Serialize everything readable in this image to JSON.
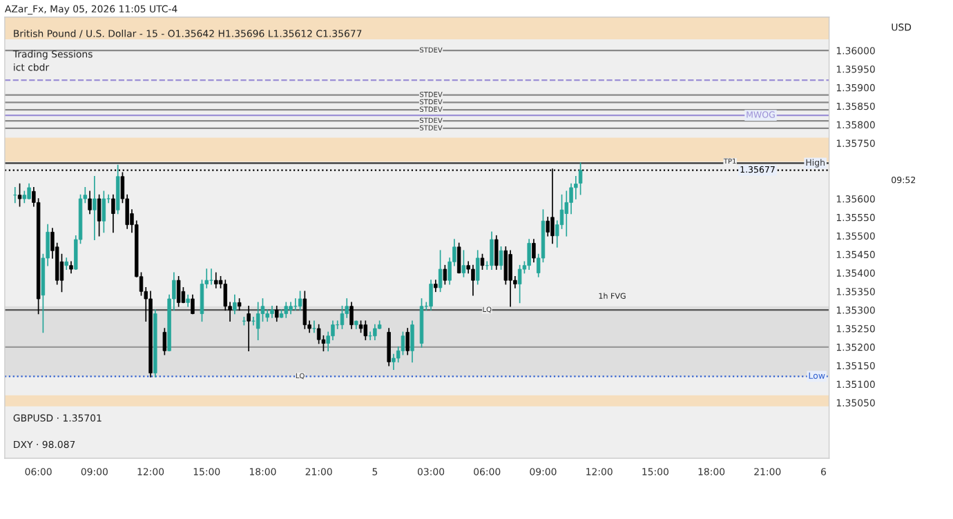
{
  "chart_data": {
    "type": "candlestick",
    "title": "British Pound / U.S. Dollar - 15 - O1.35642 H1.35696 L1.35612 C1.35677",
    "x": [
      "2026-05-04T04:45",
      "2026-05-04T05:00",
      "2026-05-04T05:15",
      "2026-05-04T05:30",
      "2026-05-04T05:45",
      "2026-05-04T06:00",
      "2026-05-04T06:15",
      "2026-05-04T06:30",
      "2026-05-04T06:45",
      "2026-05-04T07:00",
      "2026-05-04T07:15",
      "2026-05-04T07:30",
      "2026-05-04T07:45",
      "2026-05-04T08:00",
      "2026-05-04T08:15",
      "2026-05-04T08:30",
      "2026-05-04T08:45",
      "2026-05-04T09:00",
      "2026-05-04T09:15",
      "2026-05-04T09:30",
      "2026-05-04T09:45",
      "2026-05-04T10:00",
      "2026-05-04T10:15",
      "2026-05-04T10:30",
      "2026-05-04T10:45",
      "2026-05-04T11:00",
      "2026-05-04T11:15",
      "2026-05-04T11:30",
      "2026-05-04T11:45",
      "2026-05-04T12:00",
      "2026-05-04T12:15",
      "2026-05-04T12:45",
      "2026-05-04T13:00",
      "2026-05-04T13:15",
      "2026-05-04T13:30",
      "2026-05-04T13:45",
      "2026-05-04T14:00",
      "2026-05-04T14:15",
      "2026-05-04T14:45",
      "2026-05-04T15:00",
      "2026-05-04T15:15",
      "2026-05-04T15:30",
      "2026-05-04T15:45",
      "2026-05-04T16:00",
      "2026-05-04T16:15",
      "2026-05-04T16:30",
      "2026-05-04T16:45",
      "2026-05-04T17:00",
      "2026-05-04T17:15",
      "2026-05-04T17:30",
      "2026-05-04T17:45",
      "2026-05-04T18:00",
      "2026-05-04T18:15",
      "2026-05-04T18:30",
      "2026-05-04T18:45",
      "2026-05-04T19:00",
      "2026-05-04T19:15",
      "2026-05-04T19:30",
      "2026-05-04T19:45",
      "2026-05-04T20:00",
      "2026-05-04T20:15",
      "2026-05-04T20:30",
      "2026-05-04T20:45",
      "2026-05-04T21:00",
      "2026-05-04T21:15",
      "2026-05-04T21:30",
      "2026-05-04T21:45",
      "2026-05-04T22:00",
      "2026-05-04T22:15",
      "2026-05-04T22:30",
      "2026-05-04T22:45",
      "2026-05-04T23:00",
      "2026-05-04T23:15",
      "2026-05-04T23:30",
      "2026-05-04T23:45",
      "2026-05-05T00:00",
      "2026-05-05T00:15",
      "2026-05-05T00:45",
      "2026-05-05T01:00",
      "2026-05-05T01:15",
      "2026-05-05T01:30",
      "2026-05-05T01:45",
      "2026-05-05T02:00",
      "2026-05-05T02:30",
      "2026-05-05T02:45",
      "2026-05-05T03:00",
      "2026-05-05T03:15",
      "2026-05-05T03:30",
      "2026-05-05T03:45",
      "2026-05-05T04:00",
      "2026-05-05T04:15",
      "2026-05-05T04:30",
      "2026-05-05T04:45",
      "2026-05-05T05:00",
      "2026-05-05T05:15",
      "2026-05-05T05:30",
      "2026-05-05T05:45",
      "2026-05-05T06:00",
      "2026-05-05T06:15",
      "2026-05-05T06:30",
      "2026-05-05T06:45",
      "2026-05-05T07:00",
      "2026-05-05T07:15",
      "2026-05-05T07:30",
      "2026-05-05T07:45",
      "2026-05-05T08:00",
      "2026-05-05T08:15",
      "2026-05-05T08:30",
      "2026-05-05T08:45",
      "2026-05-05T09:00",
      "2026-05-05T09:15",
      "2026-05-05T09:30",
      "2026-05-05T09:45",
      "2026-05-05T10:00",
      "2026-05-05T10:15",
      "2026-05-05T10:30",
      "2026-05-05T10:45",
      "2026-05-05T11:00"
    ],
    "ohlc": [
      [
        1.3561,
        1.3563,
        1.3559,
        1.3561
      ],
      [
        1.3561,
        1.3564,
        1.3558,
        1.356
      ],
      [
        1.356,
        1.3562,
        1.3559,
        1.3561
      ],
      [
        1.356,
        1.3564,
        1.356,
        1.3563
      ],
      [
        1.3562,
        1.3563,
        1.3558,
        1.3559
      ],
      [
        1.3559,
        1.356,
        1.3529,
        1.3533
      ],
      [
        1.3534,
        1.3545,
        1.3524,
        1.3544
      ],
      [
        1.3544,
        1.3553,
        1.3542,
        1.3551
      ],
      [
        1.3551,
        1.3552,
        1.3544,
        1.3546
      ],
      [
        1.3547,
        1.3548,
        1.3537,
        1.3538
      ],
      [
        1.3543,
        1.3545,
        1.3535,
        1.3538
      ],
      [
        1.3542,
        1.3544,
        1.3541,
        1.3543
      ],
      [
        1.3542,
        1.3543,
        1.354,
        1.3541
      ],
      [
        1.3541,
        1.355,
        1.3541,
        1.3549
      ],
      [
        1.3549,
        1.3561,
        1.3548,
        1.356
      ],
      [
        1.356,
        1.3563,
        1.3559,
        1.3561
      ],
      [
        1.356,
        1.3562,
        1.3556,
        1.3557
      ],
      [
        1.3557,
        1.3566,
        1.3549,
        1.356
      ],
      [
        1.356,
        1.3561,
        1.355,
        1.3554
      ],
      [
        1.3554,
        1.3562,
        1.3551,
        1.356
      ],
      [
        1.356,
        1.3561,
        1.3559,
        1.356
      ],
      [
        1.356,
        1.3561,
        1.3551,
        1.3556
      ],
      [
        1.3557,
        1.3569,
        1.3556,
        1.3566
      ],
      [
        1.3566,
        1.3567,
        1.3559,
        1.356
      ],
      [
        1.356,
        1.3561,
        1.3552,
        1.3553
      ],
      [
        1.3556,
        1.3557,
        1.3551,
        1.3553
      ],
      [
        1.3553,
        1.3554,
        1.3539,
        1.3539
      ],
      [
        1.3539,
        1.354,
        1.3534,
        1.3535
      ],
      [
        1.3535,
        1.3536,
        1.3527,
        1.3533
      ],
      [
        1.3533,
        1.3535,
        1.3512,
        1.3513
      ],
      [
        1.3513,
        1.353,
        1.3512,
        1.3529
      ],
      [
        1.3524,
        1.3525,
        1.3518,
        1.3519
      ],
      [
        1.3519,
        1.3534,
        1.3519,
        1.3533
      ],
      [
        1.3533,
        1.354,
        1.353,
        1.3538
      ],
      [
        1.3538,
        1.3539,
        1.3531,
        1.3532
      ],
      [
        1.3535,
        1.3536,
        1.3532,
        1.3532
      ],
      [
        1.3532,
        1.3534,
        1.3531,
        1.3533
      ],
      [
        1.3533,
        1.3534,
        1.3529,
        1.3529
      ],
      [
        1.3529,
        1.3538,
        1.3527,
        1.3537
      ],
      [
        1.3537,
        1.3541,
        1.3536,
        1.3538
      ],
      [
        1.3538,
        1.3541,
        1.3537,
        1.3538
      ],
      [
        1.3538,
        1.354,
        1.3536,
        1.3537
      ],
      [
        1.3538,
        1.3539,
        1.3536,
        1.3537
      ],
      [
        1.3537,
        1.3538,
        1.353,
        1.3531
      ],
      [
        1.3531,
        1.3532,
        1.3527,
        1.353
      ],
      [
        1.353,
        1.3534,
        1.3529,
        1.3532
      ],
      [
        1.3532,
        1.3533,
        1.353,
        1.3531
      ],
      [
        1.3527,
        1.3528,
        1.3526,
        1.3527
      ],
      [
        1.3529,
        1.3531,
        1.3519,
        1.3527
      ],
      [
        1.3527,
        1.3528,
        1.3526,
        1.3527
      ],
      [
        1.3525,
        1.3532,
        1.3522,
        1.3529
      ],
      [
        1.3529,
        1.3533,
        1.3527,
        1.3531
      ],
      [
        1.3528,
        1.353,
        1.3527,
        1.3529
      ],
      [
        1.3529,
        1.3531,
        1.3528,
        1.353
      ],
      [
        1.353,
        1.3531,
        1.3527,
        1.3528
      ],
      [
        1.3528,
        1.353,
        1.3528,
        1.3529
      ],
      [
        1.3529,
        1.3532,
        1.3528,
        1.3531
      ],
      [
        1.353,
        1.3532,
        1.3529,
        1.3531
      ],
      [
        1.3531,
        1.3533,
        1.353,
        1.3531
      ],
      [
        1.3531,
        1.3535,
        1.353,
        1.3533
      ],
      [
        1.3533,
        1.3535,
        1.3525,
        1.3526
      ],
      [
        1.3526,
        1.3527,
        1.3524,
        1.3525
      ],
      [
        1.3525,
        1.3527,
        1.3524,
        1.3525
      ],
      [
        1.3525,
        1.3526,
        1.3521,
        1.3522
      ],
      [
        1.3522,
        1.3523,
        1.3519,
        1.3521
      ],
      [
        1.3521,
        1.3524,
        1.3519,
        1.3523
      ],
      [
        1.3523,
        1.3527,
        1.3522,
        1.3526
      ],
      [
        1.3526,
        1.3527,
        1.3525,
        1.3526
      ],
      [
        1.3526,
        1.3531,
        1.3525,
        1.3529
      ],
      [
        1.3529,
        1.3533,
        1.3528,
        1.3531
      ],
      [
        1.3531,
        1.3532,
        1.3525,
        1.3526
      ],
      [
        1.3526,
        1.3527,
        1.3525,
        1.3527
      ],
      [
        1.3526,
        1.3527,
        1.3524,
        1.3525
      ],
      [
        1.3526,
        1.3527,
        1.3522,
        1.3523
      ],
      [
        1.3523,
        1.3524,
        1.3522,
        1.3523
      ],
      [
        1.3523,
        1.3526,
        1.3522,
        1.3525
      ],
      [
        1.3525,
        1.3527,
        1.3525,
        1.3526
      ],
      [
        1.3524,
        1.3525,
        1.3515,
        1.3516
      ],
      [
        1.3516,
        1.3518,
        1.3514,
        1.3517
      ],
      [
        1.3517,
        1.352,
        1.3516,
        1.3519
      ],
      [
        1.3519,
        1.3524,
        1.3518,
        1.3523
      ],
      [
        1.3524,
        1.3525,
        1.3518,
        1.3519
      ],
      [
        1.3519,
        1.3527,
        1.3516,
        1.3526
      ],
      [
        1.3521,
        1.3533,
        1.352,
        1.3531
      ],
      [
        1.3531,
        1.3532,
        1.353,
        1.3531
      ],
      [
        1.3531,
        1.3538,
        1.353,
        1.3537
      ],
      [
        1.3537,
        1.3538,
        1.3535,
        1.3536
      ],
      [
        1.3536,
        1.3546,
        1.3535,
        1.3541
      ],
      [
        1.3541,
        1.3542,
        1.3537,
        1.3538
      ],
      [
        1.3538,
        1.3544,
        1.3537,
        1.3543
      ],
      [
        1.3543,
        1.3549,
        1.3542,
        1.3547
      ],
      [
        1.3547,
        1.3548,
        1.354,
        1.354
      ],
      [
        1.354,
        1.3546,
        1.3539,
        1.3542
      ],
      [
        1.3542,
        1.3543,
        1.354,
        1.3541
      ],
      [
        1.3541,
        1.3542,
        1.3534,
        1.3538
      ],
      [
        1.3538,
        1.3546,
        1.3537,
        1.3544
      ],
      [
        1.3544,
        1.3545,
        1.3541,
        1.3542
      ],
      [
        1.3542,
        1.3543,
        1.3541,
        1.3542
      ],
      [
        1.3542,
        1.3551,
        1.3541,
        1.3549
      ],
      [
        1.3549,
        1.355,
        1.3541,
        1.3542
      ],
      [
        1.3542,
        1.3547,
        1.3541,
        1.3546
      ],
      [
        1.3546,
        1.3547,
        1.3537,
        1.3538
      ],
      [
        1.3545,
        1.3546,
        1.3531,
        1.3538
      ],
      [
        1.3538,
        1.3539,
        1.3536,
        1.3537
      ],
      [
        1.3537,
        1.3542,
        1.3532,
        1.3541
      ],
      [
        1.3541,
        1.3543,
        1.354,
        1.3542
      ],
      [
        1.3542,
        1.3549,
        1.3541,
        1.3548
      ],
      [
        1.3548,
        1.3549,
        1.3543,
        1.3544
      ],
      [
        1.354,
        1.3545,
        1.3539,
        1.3544
      ],
      [
        1.3544,
        1.3557,
        1.3543,
        1.3554
      ],
      [
        1.3554,
        1.3555,
        1.355,
        1.3551
      ],
      [
        1.3555,
        1.3568,
        1.3548,
        1.355
      ],
      [
        1.355,
        1.3554,
        1.3547,
        1.3553
      ],
      [
        1.3553,
        1.3561,
        1.3552,
        1.3557
      ],
      [
        1.3556,
        1.3562,
        1.355,
        1.3559
      ],
      [
        1.3559,
        1.3564,
        1.3556,
        1.3563
      ],
      [
        1.3563,
        1.3566,
        1.356,
        1.3564
      ],
      [
        1.35642,
        1.35696,
        1.35612,
        1.35677
      ]
    ],
    "xlim": [
      "2026-05-04T04:12",
      "2026-05-06T00:18"
    ],
    "xticks": [
      {
        "value": "2026-05-04T06:00",
        "label": "06:00"
      },
      {
        "value": "2026-05-04T09:00",
        "label": "09:00"
      },
      {
        "value": "2026-05-04T12:00",
        "label": "12:00"
      },
      {
        "value": "2026-05-04T15:00",
        "label": "15:00"
      },
      {
        "value": "2026-05-04T18:00",
        "label": "18:00"
      },
      {
        "value": "2026-05-04T21:00",
        "label": "21:00"
      },
      {
        "value": "2026-05-05T00:00",
        "label": "5"
      },
      {
        "value": "2026-05-05T03:00",
        "label": "03:00"
      },
      {
        "value": "2026-05-05T06:00",
        "label": "06:00"
      },
      {
        "value": "2026-05-05T09:00",
        "label": "09:00"
      },
      {
        "value": "2026-05-05T12:00",
        "label": "12:00"
      },
      {
        "value": "2026-05-05T15:00",
        "label": "15:00"
      },
      {
        "value": "2026-05-05T18:00",
        "label": "18:00"
      },
      {
        "value": "2026-05-05T21:00",
        "label": "21:00"
      },
      {
        "value": "2026-05-06T00:00",
        "label": "6"
      }
    ],
    "ylim": [
      1.349,
      1.3609
    ],
    "yticks": [
      {
        "value": 1.3505,
        "label": "1.35050"
      },
      {
        "value": 1.351,
        "label": "1.35100"
      },
      {
        "value": 1.3515,
        "label": "1.35150"
      },
      {
        "value": 1.352,
        "label": "1.35200"
      },
      {
        "value": 1.3525,
        "label": "1.35250"
      },
      {
        "value": 1.353,
        "label": "1.35300"
      },
      {
        "value": 1.3535,
        "label": "1.35350"
      },
      {
        "value": 1.354,
        "label": "1.35400"
      },
      {
        "value": 1.3545,
        "label": "1.35450"
      },
      {
        "value": 1.355,
        "label": "1.35500"
      },
      {
        "value": 1.3555,
        "label": "1.35550"
      },
      {
        "value": 1.356,
        "label": "1.35600"
      },
      {
        "value": 1.3575,
        "label": "1.35750"
      },
      {
        "value": 1.358,
        "label": "1.35800"
      },
      {
        "value": 1.3585,
        "label": "1.35850"
      },
      {
        "value": 1.359,
        "label": "1.35900"
      },
      {
        "value": 1.3595,
        "label": "1.35950"
      },
      {
        "value": 1.36,
        "label": "1.36000"
      }
    ],
    "grid": false,
    "bands": [
      {
        "axis": "y",
        "from": 1.3603,
        "to": 1.3609,
        "color": "#f7d9b0"
      },
      {
        "axis": "y",
        "from": 1.357,
        "to": 1.35765,
        "color": "#f7d9b0"
      },
      {
        "axis": "y",
        "from": 1.3504,
        "to": 1.3507,
        "color": "#f7d9b0"
      },
      {
        "axis": "y",
        "from": 1.3512,
        "to": 1.3531,
        "color": "#d9d9d9"
      }
    ],
    "ref_lines": [
      {
        "axis": "y",
        "value": 1.36,
        "color": "#888888",
        "line_style": "solid"
      },
      {
        "axis": "y",
        "value": 1.3588,
        "color": "#888888",
        "line_style": "solid"
      },
      {
        "axis": "y",
        "value": 1.3586,
        "color": "#888888",
        "line_style": "solid"
      },
      {
        "axis": "y",
        "value": 1.3584,
        "color": "#888888",
        "line_style": "solid"
      },
      {
        "axis": "y",
        "value": 1.3581,
        "color": "#888888",
        "line_style": "solid"
      },
      {
        "axis": "y",
        "value": 1.3579,
        "color": "#888888",
        "line_style": "solid"
      },
      {
        "axis": "y",
        "value": 1.3592,
        "color": "#9b8fd6",
        "line_style": "dashed"
      },
      {
        "axis": "y",
        "value": 1.35825,
        "label": "MWOG",
        "color": "#9b8fd6",
        "line_style": "solid"
      },
      {
        "axis": "y",
        "value": 1.35696,
        "label": "High",
        "color": "#333333",
        "line_style": "solid"
      },
      {
        "axis": "y",
        "value": 1.35677,
        "label": "1.35677",
        "color": "#000000",
        "line_style": "dotted"
      },
      {
        "axis": "y",
        "value": 1.353,
        "color": "#555555",
        "line_style": "solid"
      },
      {
        "axis": "y",
        "value": 1.352,
        "color": "#999999",
        "line_style": "solid"
      },
      {
        "axis": "y",
        "value": 1.35121,
        "label": "Low",
        "color": "#2f5fd0",
        "line_style": "dotted"
      }
    ],
    "annotations": [
      "AZar_Fx, May 05, 2026 11:05 UTC-4",
      "Trading Sessions",
      "ict cbdr",
      "GBPUSD · 1.35701",
      "DXY · 98.087",
      "USD",
      "09:52",
      "1h FVG",
      {
        "text": "STDEV",
        "x": "2026-05-05T03:00",
        "y": 1.36
      },
      {
        "text": "STDEV",
        "x": "2026-05-05T03:00",
        "y": 1.3588
      },
      {
        "text": "STDEV",
        "x": "2026-05-05T03:00",
        "y": 1.3586
      },
      {
        "text": "STDEV",
        "x": "2026-05-05T03:00",
        "y": 1.3584
      },
      {
        "text": "STDEV",
        "x": "2026-05-05T03:00",
        "y": 1.3581
      },
      {
        "text": "STDEV",
        "x": "2026-05-05T03:00",
        "y": 1.3579
      },
      {
        "text": "TP1",
        "x": "2026-05-05T19:00",
        "y": 1.357
      },
      {
        "text": "LQ",
        "x": "2026-05-05T06:00",
        "y": 1.353
      },
      {
        "text": "LQ",
        "x": "2026-05-04T20:00",
        "y": 1.35121
      }
    ]
  }
}
